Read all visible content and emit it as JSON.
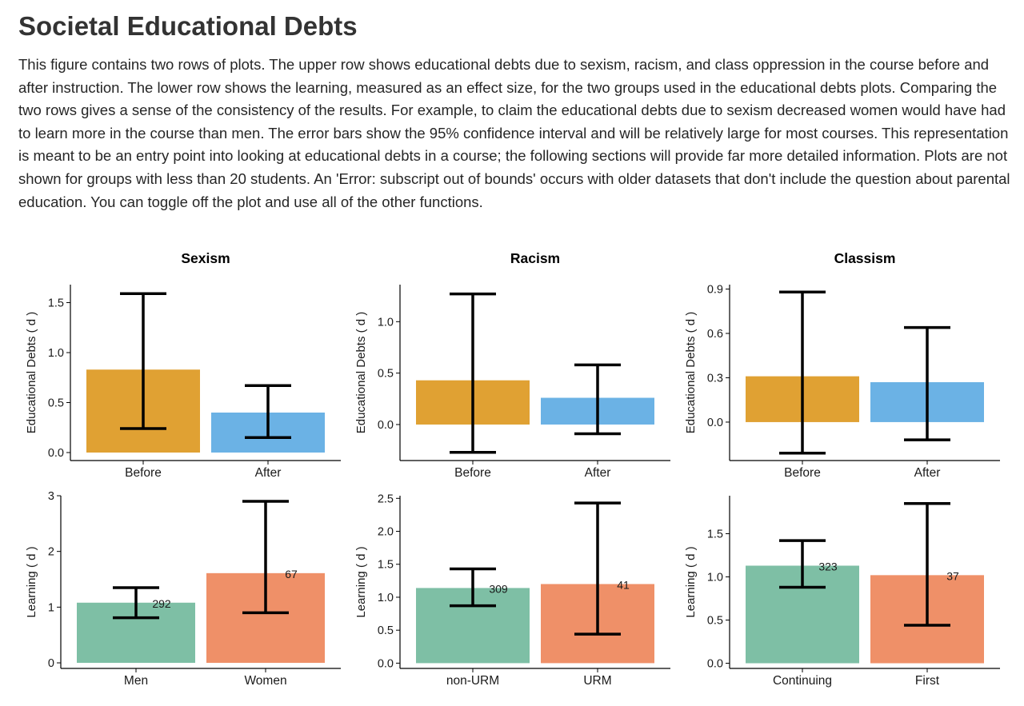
{
  "page": {
    "title": "Societal Educational Debts",
    "description": "This figure contains two rows of plots. The upper row shows educational debts due to sexism, racism, and class oppression in the course before and after instruction. The lower row shows the learning, measured as an effect size, for the two groups used in the educational debts plots. Comparing the two rows gives a sense of the consistency of the results. For example, to claim the educational debts due to sexism decreased women would have had to learn more in the course than men. The error bars show the 95% confidence interval and will be relatively large for most courses. This representation is meant to be an entry point into looking at educational debts in a course; the following sections will provide far more detailed information. Plots are not shown for groups with less than 20 students. An 'Error: subscript out of bounds' occurs with older datasets that don't include the question about parental education. You can toggle off the plot and use all of the other functions."
  },
  "colors": {
    "before": "#E0A133",
    "after": "#6BB2E5",
    "group1": "#7EBFA5",
    "group2": "#EF9068",
    "errorbar": "#000000",
    "axis": "#000000"
  },
  "chart_data": [
    {
      "type": "bar",
      "id": "sexism-debts",
      "title": "Sexism",
      "ylabel": "Educational Debts ( d )",
      "categories": [
        "Before",
        "After"
      ],
      "values": [
        0.83,
        0.4
      ],
      "ci_low": [
        0.24,
        0.15
      ],
      "ci_high": [
        1.59,
        0.67
      ],
      "ylim": [
        -0.08,
        1.68
      ],
      "yticks": [
        "0.0",
        "0.5",
        "1.0",
        "1.5"
      ],
      "bar_colors": [
        "before",
        "after"
      ],
      "n_labels": []
    },
    {
      "type": "bar",
      "id": "racism-debts",
      "title": "Racism",
      "ylabel": "Educational Debts ( d )",
      "categories": [
        "Before",
        "After"
      ],
      "values": [
        0.43,
        0.26
      ],
      "ci_low": [
        -0.27,
        -0.09
      ],
      "ci_high": [
        1.27,
        0.58
      ],
      "ylim": [
        -0.35,
        1.36
      ],
      "yticks": [
        "0.0",
        "0.5",
        "1.0"
      ],
      "bar_colors": [
        "before",
        "after"
      ],
      "n_labels": []
    },
    {
      "type": "bar",
      "id": "classism-debts",
      "title": "Classism",
      "ylabel": "Educational Debts ( d )",
      "categories": [
        "Before",
        "After"
      ],
      "values": [
        0.31,
        0.27
      ],
      "ci_low": [
        -0.21,
        -0.12
      ],
      "ci_high": [
        0.88,
        0.64
      ],
      "ylim": [
        -0.26,
        0.93
      ],
      "yticks": [
        "0.0",
        "0.3",
        "0.6",
        "0.9"
      ],
      "bar_colors": [
        "before",
        "after"
      ],
      "n_labels": []
    },
    {
      "type": "bar",
      "id": "sexism-learning",
      "title": "",
      "ylabel": "Learning ( d )",
      "categories": [
        "Men",
        "Women"
      ],
      "values": [
        1.08,
        1.61
      ],
      "ci_low": [
        0.81,
        0.9
      ],
      "ci_high": [
        1.35,
        2.9
      ],
      "ylim": [
        -0.1,
        3.0
      ],
      "yticks": [
        "0",
        "1",
        "2",
        "3"
      ],
      "bar_colors": [
        "group1",
        "group2"
      ],
      "n_labels": [
        "292",
        "67"
      ]
    },
    {
      "type": "bar",
      "id": "racism-learning",
      "title": "",
      "ylabel": "Learning ( d )",
      "categories": [
        "non-URM",
        "URM"
      ],
      "values": [
        1.14,
        1.2
      ],
      "ci_low": [
        0.87,
        0.44
      ],
      "ci_high": [
        1.43,
        2.43
      ],
      "ylim": [
        -0.08,
        2.54
      ],
      "yticks": [
        "0.0",
        "0.5",
        "1.0",
        "1.5",
        "2.0",
        "2.5"
      ],
      "bar_colors": [
        "group1",
        "group2"
      ],
      "n_labels": [
        "309",
        "41"
      ]
    },
    {
      "type": "bar",
      "id": "classism-learning",
      "title": "",
      "ylabel": "Learning ( d )",
      "categories": [
        "Continuing",
        "First"
      ],
      "values": [
        1.13,
        1.02
      ],
      "ci_low": [
        0.88,
        0.44
      ],
      "ci_high": [
        1.42,
        1.85
      ],
      "ylim": [
        -0.06,
        1.94
      ],
      "yticks": [
        "0.0",
        "0.5",
        "1.0",
        "1.5"
      ],
      "bar_colors": [
        "group1",
        "group2"
      ],
      "n_labels": [
        "323",
        "37"
      ]
    }
  ]
}
